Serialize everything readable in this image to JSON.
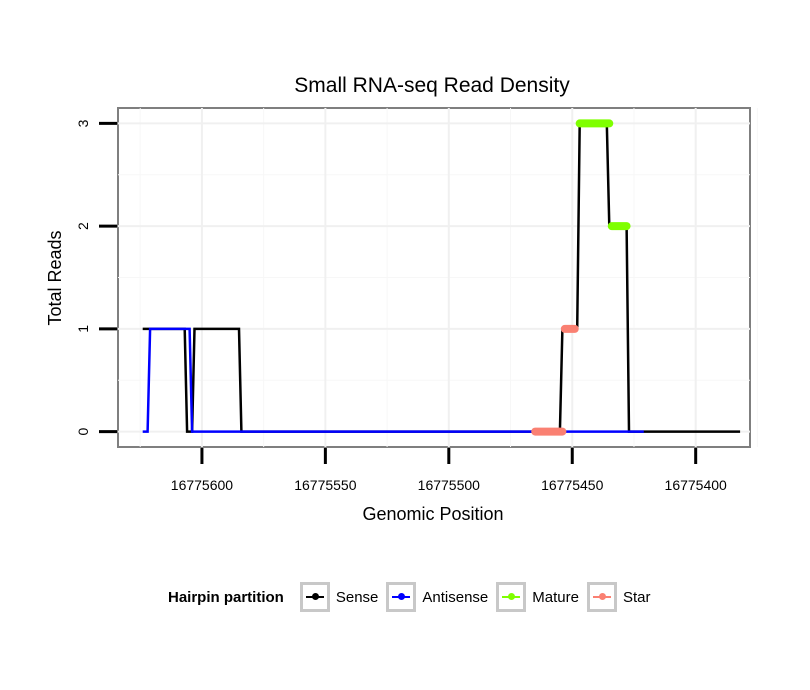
{
  "chart_data": {
    "type": "line",
    "title": "Small RNA-seq Read Density",
    "xlabel": "Genomic Position",
    "ylabel": "Total Reads",
    "x_reversed": true,
    "xlim": [
      16775378,
      16775634
    ],
    "ylim": [
      -0.15,
      3.15
    ],
    "x_ticks": [
      16775600,
      16775550,
      16775500,
      16775450,
      16775400
    ],
    "x_tick_labels": [
      "16775600",
      "16775550",
      "16775500",
      "16775450",
      "16775400"
    ],
    "y_ticks": [
      0,
      1,
      2,
      3
    ],
    "y_tick_labels": [
      "0",
      "1",
      "2",
      "3"
    ],
    "grid": true,
    "legend_position": "bottom",
    "legend": {
      "title": "Hairpin partition",
      "entries": [
        {
          "name": "Sense",
          "color": "#000000"
        },
        {
          "name": "Antisense",
          "color": "#0000ff"
        },
        {
          "name": "Mature",
          "color": "#7fff00"
        },
        {
          "name": "Star",
          "color": "#fa8072"
        }
      ]
    },
    "series": [
      {
        "name": "Sense",
        "color": "#000000",
        "type": "line",
        "x": [
          16775624,
          16775607,
          16775606,
          16775604,
          16775603,
          16775585,
          16775584,
          16775455,
          16775454,
          16775448,
          16775447,
          16775436,
          16775435,
          16775428,
          16775427,
          16775422,
          16775421,
          16775382
        ],
        "y": [
          1,
          1,
          0,
          0,
          1,
          1,
          0,
          0,
          1,
          1,
          3,
          3,
          2,
          2,
          0,
          0,
          0,
          0
        ]
      },
      {
        "name": "Antisense",
        "color": "#0000ff",
        "type": "line",
        "x": [
          16775624,
          16775622,
          16775621,
          16775605,
          16775604,
          16775421
        ],
        "y": [
          0,
          0,
          1,
          1,
          0,
          0
        ]
      },
      {
        "name": "Mature",
        "color": "#7fff00",
        "type": "segments",
        "segments": [
          {
            "x": [
              16775447,
              16775435
            ],
            "y": [
              3,
              3
            ]
          },
          {
            "x": [
              16775434,
              16775428
            ],
            "y": [
              2,
              2
            ]
          }
        ]
      },
      {
        "name": "Star",
        "color": "#fa8072",
        "type": "segments",
        "segments": [
          {
            "x": [
              16775465,
              16775454
            ],
            "y": [
              0,
              0
            ]
          },
          {
            "x": [
              16775453,
              16775449
            ],
            "y": [
              1,
              1
            ]
          }
        ]
      }
    ]
  }
}
